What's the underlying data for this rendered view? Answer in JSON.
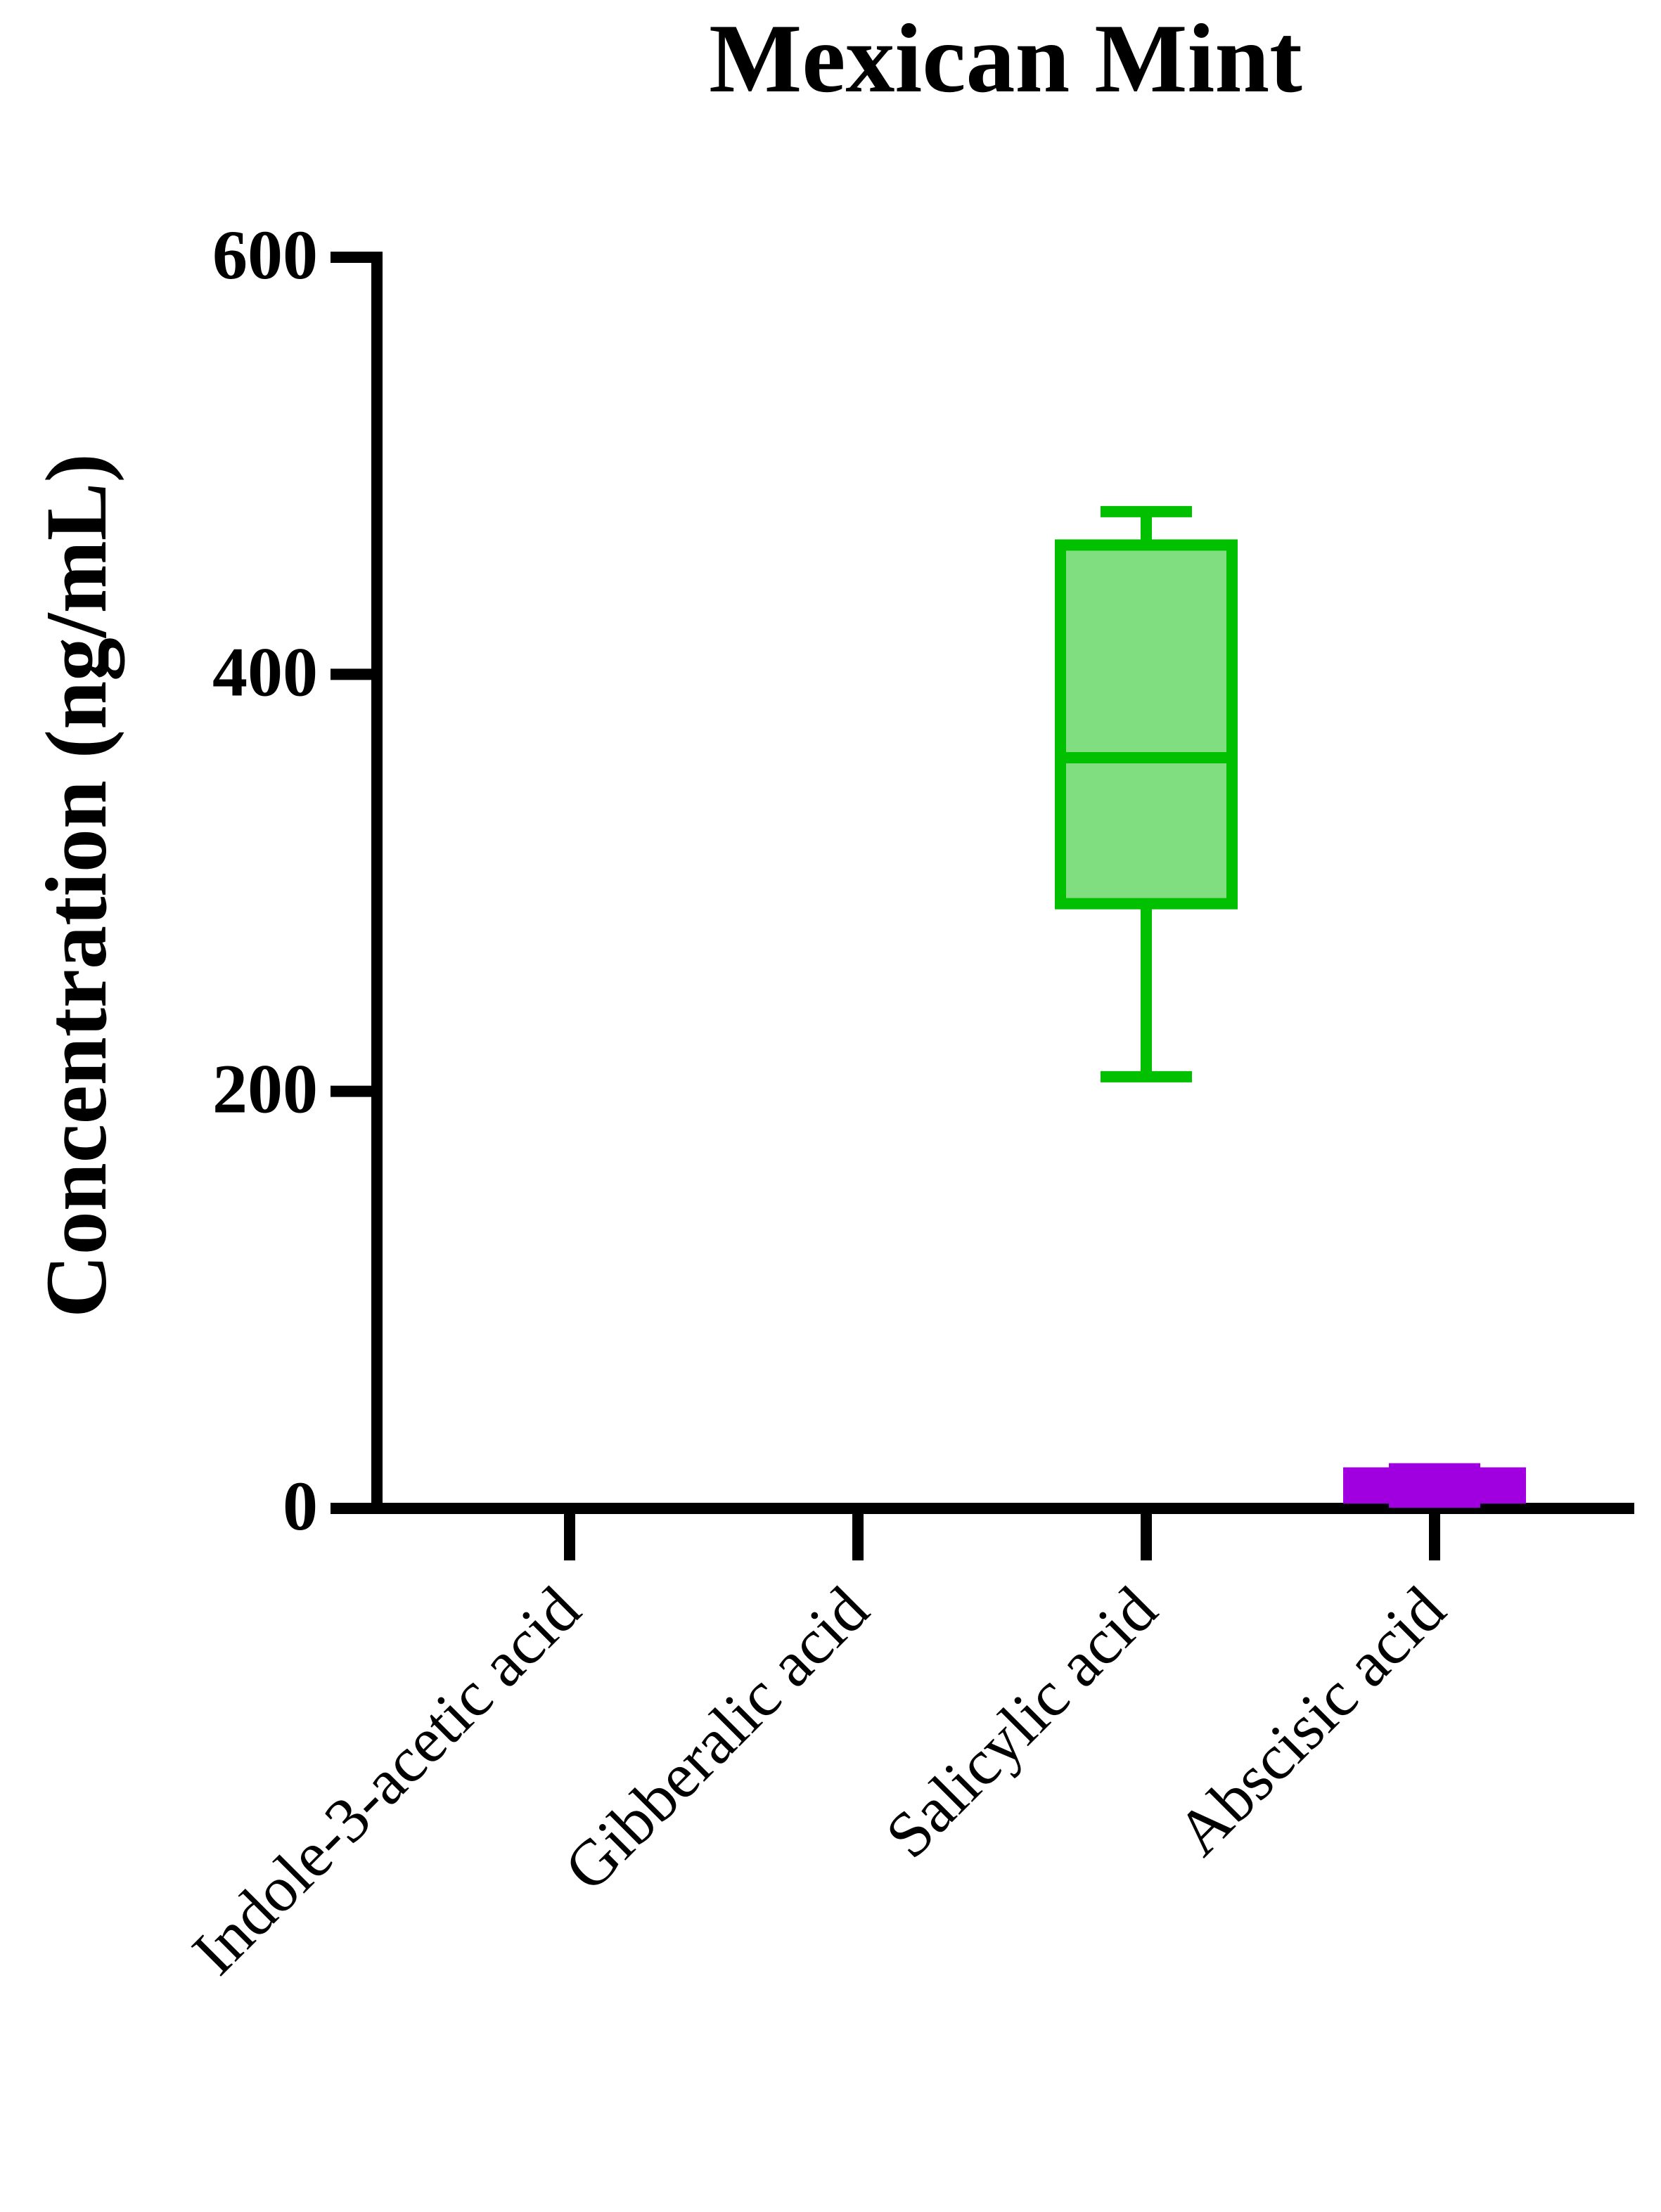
{
  "chart_data": {
    "type": "box",
    "title": "Mexican Mint",
    "y_label": "Concentration (ng/mL)",
    "categories": [
      "Indole-3-acetic acid",
      "Gibberalic acid",
      "Salicylic acid",
      "Abscisic acid"
    ],
    "min": [
      null,
      null,
      207,
      3
    ],
    "q1": [
      null,
      null,
      290,
      5
    ],
    "median": [
      null,
      null,
      360,
      10
    ],
    "q3": [
      null,
      null,
      462,
      17
    ],
    "max": [
      null,
      null,
      478,
      19
    ],
    "colors": [
      null,
      null,
      "#00c000",
      "#a000e0"
    ],
    "fill_colors": [
      null,
      null,
      "#80dd80",
      "#a000e0"
    ],
    "ylim": [
      0,
      600
    ],
    "yticks": [
      0,
      200,
      400,
      600
    ],
    "grid": false
  }
}
